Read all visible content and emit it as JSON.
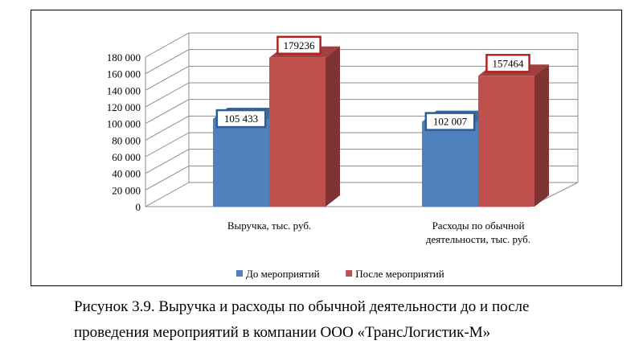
{
  "chart_data": {
    "type": "bar",
    "categories": [
      "Выручка, тыс. руб.",
      "Расходы по обычной деятельности, тыс. руб."
    ],
    "category_lines": [
      [
        "Выручка, тыс. руб."
      ],
      [
        "Расходы по обычной",
        "деятельности, тыс. руб."
      ]
    ],
    "series": [
      {
        "name": "До мероприятий",
        "values": [
          105433,
          102007
        ],
        "labels": [
          "105 433",
          "102 007"
        ],
        "color": "#4f81bd",
        "label_border": "#2e5e96"
      },
      {
        "name": "После мероприятий",
        "values": [
          179236,
          157464
        ],
        "labels": [
          "179236",
          "157464"
        ],
        "color": "#c0504d",
        "label_border": "#b22222"
      }
    ],
    "ylim": [
      0,
      180000
    ],
    "yticks": [
      0,
      20000,
      40000,
      60000,
      80000,
      100000,
      120000,
      140000,
      160000,
      180000
    ],
    "ytick_labels": [
      "0",
      "20 000",
      "40 000",
      "60 000",
      "80 000",
      "100 000",
      "120 000",
      "140 000",
      "160 000",
      "180 000"
    ],
    "grid": true,
    "projection": "3d",
    "legend_position": "bottom"
  },
  "caption": {
    "line1": "Рисунок 3.9. Выручка и расходы по обычной деятельности до и после",
    "line2": "проведения мероприятий в компании ООО «ТрансЛогистик-М»"
  }
}
